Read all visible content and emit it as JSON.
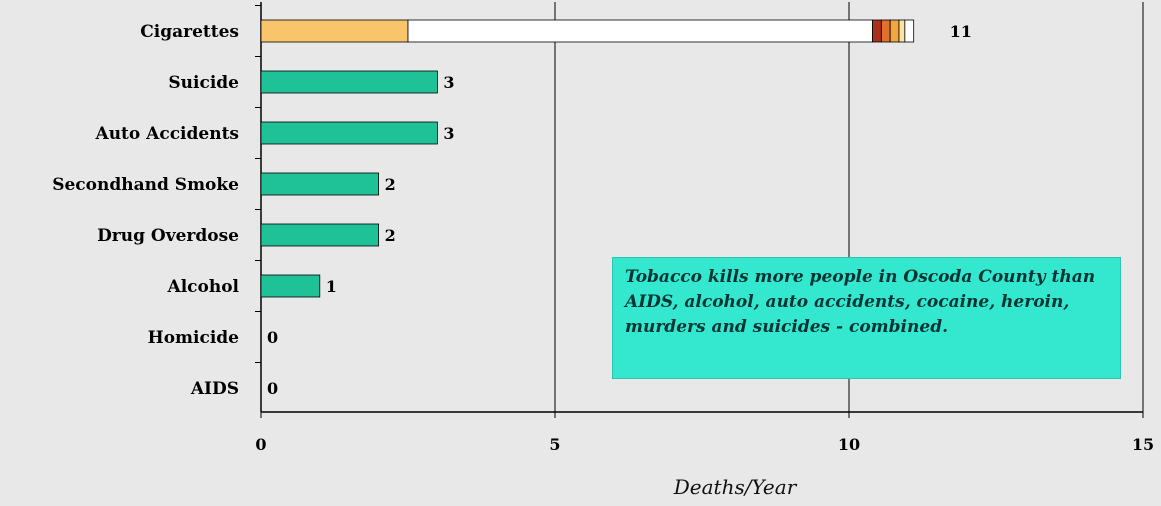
{
  "chart_data": {
    "type": "bar",
    "orientation": "horizontal",
    "categories": [
      "Cigarettes",
      "Suicide",
      "Auto Accidents",
      "Secondhand Smoke",
      "Drug Overdose",
      "Alcohol",
      "Homicide",
      "AIDS"
    ],
    "values": [
      11,
      3,
      3,
      2,
      2,
      1,
      0,
      0
    ],
    "value_labels": [
      "11",
      "3",
      "3",
      "2",
      "2",
      "1",
      "0",
      "0"
    ],
    "stacked_first_bar": {
      "category": "Cigarettes",
      "segments": [
        {
          "value": 2.5,
          "color": "#f9c56b"
        },
        {
          "value": 7.9,
          "color": "#ffffff"
        },
        {
          "value": 0.15,
          "color": "#a8321e"
        },
        {
          "value": 0.15,
          "color": "#e0702a"
        },
        {
          "value": 0.15,
          "color": "#f3a640"
        },
        {
          "value": 0.1,
          "color": "#fbe3a4"
        },
        {
          "value": 0.15,
          "color": "#ffffff"
        }
      ]
    },
    "bar_color": "#1fc196",
    "xlabel": "Deaths/Year",
    "xlim": [
      0,
      15
    ],
    "xticks": [
      0,
      5,
      10,
      15
    ],
    "xtick_labels": [
      "0",
      "5",
      "10",
      "15"
    ],
    "grid": "vertical",
    "annotation": "Tobacco kills more people in Oscoda County than AIDS, alcohol, auto accidents, cocaine, heroin, murders and suicides - combined.",
    "annotation_color": "#33e8cf"
  }
}
